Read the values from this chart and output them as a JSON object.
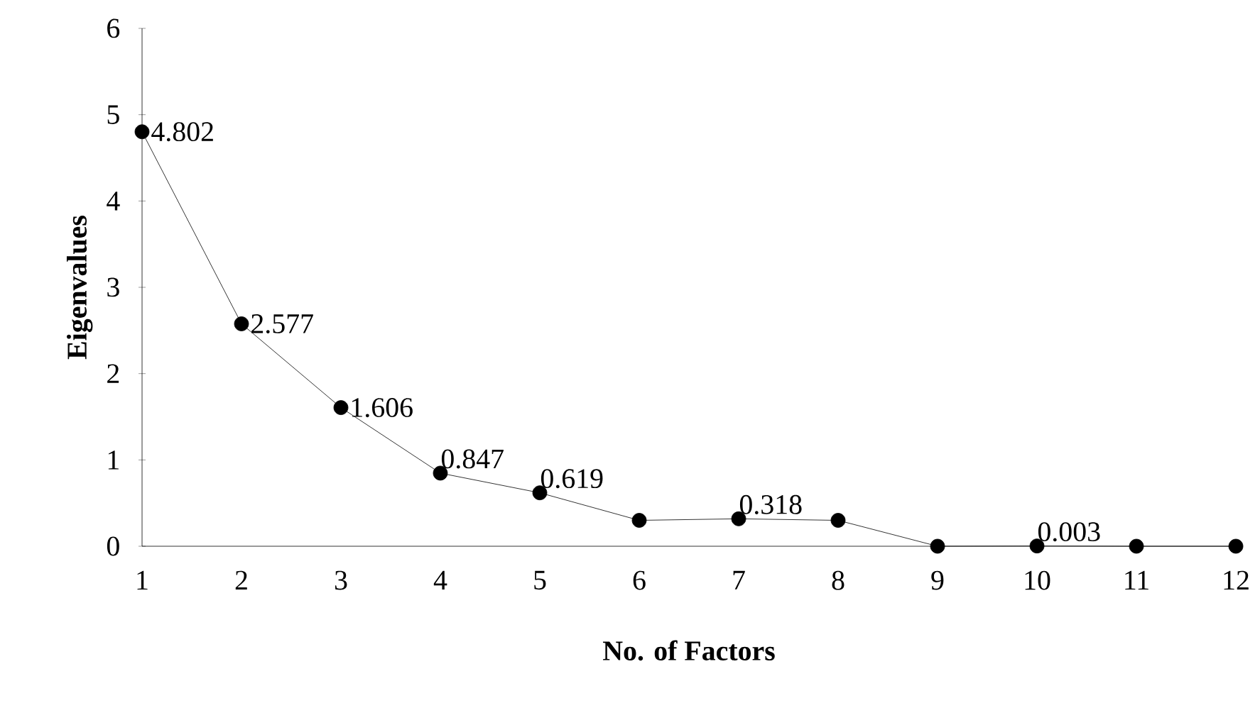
{
  "chart_data": {
    "type": "line",
    "xlabel": "No. of Factors",
    "ylabel": "Eigenvalues",
    "categories": [
      "1",
      "2",
      "3",
      "4",
      "5",
      "6",
      "7",
      "8",
      "9",
      "10",
      "11",
      "12"
    ],
    "values": [
      4.802,
      2.577,
      1.606,
      0.847,
      0.619,
      0.3,
      0.318,
      0.3,
      0,
      0.003,
      0,
      0
    ],
    "value_labels": [
      "4.802",
      "2.577",
      "1.606",
      "0.847",
      "0.619",
      null,
      "0.318",
      null,
      null,
      "0.003",
      null,
      null
    ],
    "color": "#000000",
    "marker": "circle",
    "line_style": "solid",
    "grid": false,
    "ylim": [
      0,
      6
    ],
    "yticks": [
      0,
      1,
      2,
      3,
      4,
      5,
      6
    ]
  }
}
